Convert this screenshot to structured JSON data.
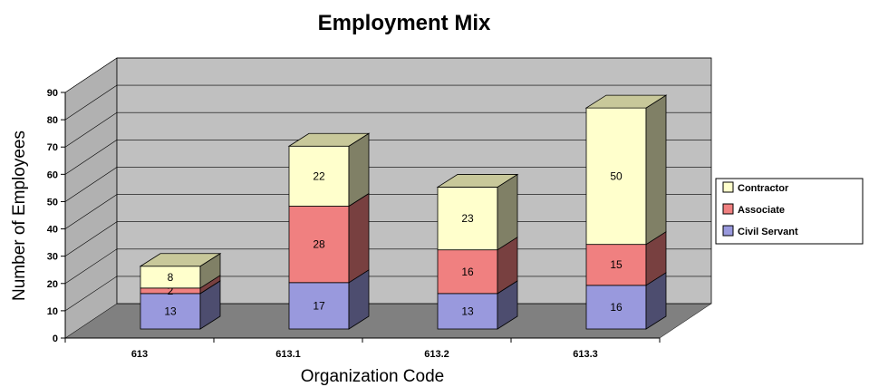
{
  "chart_data": {
    "type": "bar",
    "stacked": true,
    "three_d": true,
    "title": "Employment Mix",
    "xlabel": "Organization Code",
    "ylabel": "Number of Employees",
    "ylim": [
      0,
      90
    ],
    "yticks": [
      "0",
      "10",
      "20",
      "30",
      "40",
      "50",
      "60",
      "70",
      "80",
      "90"
    ],
    "categories": [
      "613",
      "613.1",
      "613.2",
      "613.3"
    ],
    "series": [
      {
        "name": "Civil Servant",
        "values": [
          13,
          17,
          13,
          16
        ],
        "color": "#9999dd"
      },
      {
        "name": "Associate",
        "values": [
          2,
          28,
          16,
          15
        ],
        "color": "#f08080"
      },
      {
        "name": "Contractor",
        "values": [
          8,
          22,
          23,
          50
        ],
        "color": "#ffffcc"
      }
    ],
    "legend_position": "right",
    "grid": true,
    "wall_color": "#c0c0c0",
    "floor_color": "#808080"
  }
}
